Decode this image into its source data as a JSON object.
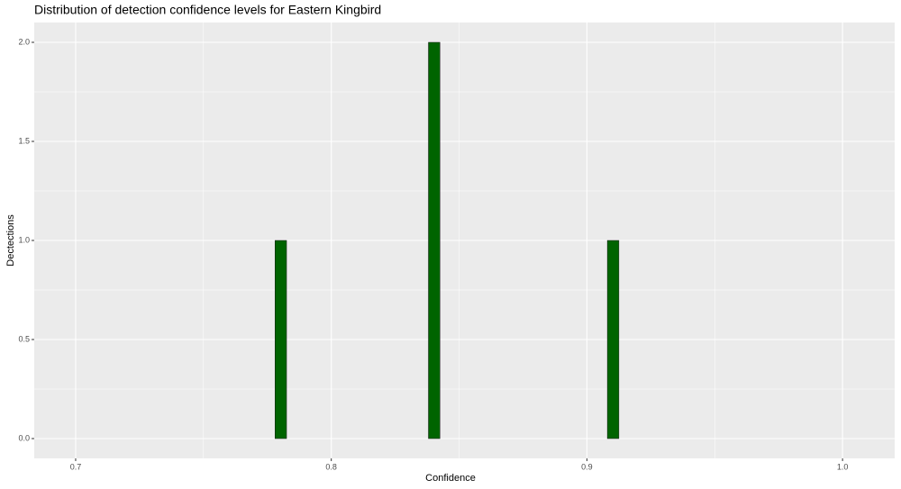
{
  "chart_data": {
    "type": "histogram",
    "title": "Distribution of detection confidence levels for Eastern Kingbird",
    "x_label": "Confidence",
    "y_label": "Dectections",
    "bins": [
      0.778,
      0.7825,
      0.838,
      0.8425,
      0.908,
      0.9125
    ],
    "values": [
      1,
      0,
      2,
      0,
      1
    ],
    "color": "#006400",
    "xlim": [
      0.6838,
      1.0204
    ],
    "ylim": [
      -0.1,
      2.1
    ],
    "xticks": [
      0.7,
      0.8,
      0.9,
      {
        "value": 1,
        "label": "1.0"
      }
    ],
    "yticks": [
      {
        "value": 0,
        "label": "0.0"
      },
      0.5,
      {
        "value": 1,
        "label": "1.0"
      },
      1.5,
      {
        "value": 2,
        "label": "2.0"
      }
    ],
    "grid": true
  }
}
